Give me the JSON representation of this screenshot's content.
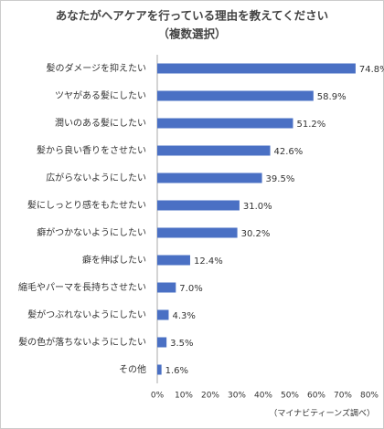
{
  "chart_data": {
    "type": "bar",
    "orientation": "horizontal",
    "title": "あなたがヘアケアを行っている理由を教えてください",
    "subtitle": "（複数選択）",
    "source": "（マイナビティーンズ調べ）",
    "categories": [
      "髪のダメージを抑えたい",
      "ツヤがある髪にしたい",
      "潤いのある髪にしたい",
      "髪から良い香りをさせたい",
      "広がらないようにしたい",
      "髪にしっとり感をもたせたい",
      "癖がつかないようにしたい",
      "癖を伸ばしたい",
      "縮毛やパーマを長持ちさせたい",
      "髪がつぶれないようにしたい",
      "髪の色が落ちないようにしたい",
      "その他"
    ],
    "values": [
      74.8,
      58.9,
      51.2,
      42.6,
      39.5,
      31.0,
      30.2,
      12.4,
      7.0,
      4.3,
      3.5,
      1.6
    ],
    "value_labels": [
      "74.8%",
      "58.9%",
      "51.2%",
      "42.6%",
      "39.5%",
      "31.0%",
      "30.2%",
      "12.4%",
      "7.0%",
      "4.3%",
      "3.5%",
      "1.6%"
    ],
    "color": "#4a70c4",
    "xlim": [
      0,
      80
    ],
    "xticks": [
      {
        "value": 0,
        "label": "0%"
      },
      {
        "value": 10,
        "label": "10%"
      },
      {
        "value": 20,
        "label": "20%"
      },
      {
        "value": 30,
        "label": "30%"
      },
      {
        "value": 40,
        "label": "40%"
      },
      {
        "value": 50,
        "label": "50%"
      },
      {
        "value": 60,
        "label": "60%"
      },
      {
        "value": 70,
        "label": "70%"
      },
      {
        "value": 80,
        "label": "80%"
      }
    ],
    "grid": false
  }
}
